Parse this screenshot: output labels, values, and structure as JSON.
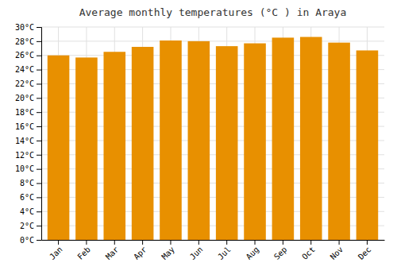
{
  "chart_data": {
    "type": "bar",
    "title": "Average monthly temperatures (°C ) in Araya",
    "categories": [
      "Jan",
      "Feb",
      "Mar",
      "Apr",
      "May",
      "Jun",
      "Jul",
      "Aug",
      "Sep",
      "Oct",
      "Nov",
      "Dec"
    ],
    "values": [
      26.0,
      25.7,
      26.5,
      27.2,
      28.1,
      28.0,
      27.3,
      27.7,
      28.5,
      28.6,
      27.8,
      26.7
    ],
    "color": "#E89000",
    "ylim": [
      0,
      30
    ],
    "yticks": [
      {
        "value": 0,
        "label": "0°C"
      },
      {
        "value": 2,
        "label": "2°C"
      },
      {
        "value": 4,
        "label": "4°C"
      },
      {
        "value": 6,
        "label": "6°C"
      },
      {
        "value": 8,
        "label": "8°C"
      },
      {
        "value": 10,
        "label": "10°C"
      },
      {
        "value": 12,
        "label": "12°C"
      },
      {
        "value": 14,
        "label": "14°C"
      },
      {
        "value": 16,
        "label": "16°C"
      },
      {
        "value": 18,
        "label": "18°C"
      },
      {
        "value": 20,
        "label": "20°C"
      },
      {
        "value": 22,
        "label": "22°C"
      },
      {
        "value": 24,
        "label": "24°C"
      },
      {
        "value": 26,
        "label": "26°C"
      },
      {
        "value": 28,
        "label": "28°C"
      },
      {
        "value": 30,
        "label": "30°C"
      }
    ],
    "grid": true
  }
}
